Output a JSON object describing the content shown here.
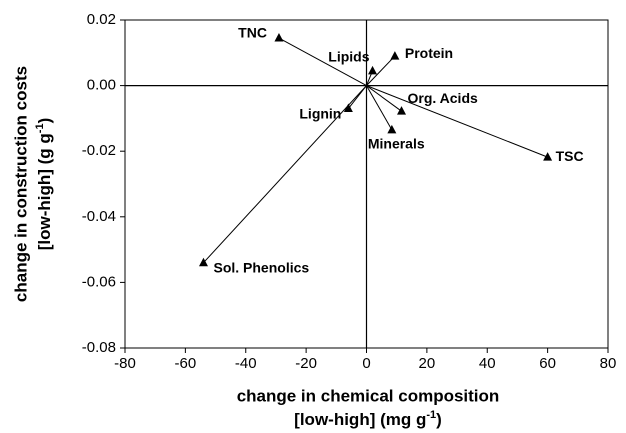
{
  "chart_data": {
    "type": "scatter",
    "x_label": [
      "change in chemical composition",
      "[low-high] (mg g",
      "-1",
      ")"
    ],
    "y_label": [
      "change in construction costs",
      "[low-high] (g g",
      "-1",
      ")"
    ],
    "categories": [
      "TNC",
      "Lipids",
      "Protein",
      "Org. Acids",
      "Minerals",
      "TSC",
      "Lignin",
      "Sol. Phenolics"
    ],
    "x": [
      -29,
      2,
      9.4,
      11.6,
      8.4,
      60,
      -6,
      -54
    ],
    "values": [
      0.0145,
      0.0045,
      0.009,
      -0.0078,
      -0.0135,
      -0.0218,
      -0.007,
      -0.054
    ],
    "color": "#000000",
    "xlim": [
      -80,
      80
    ],
    "xticks": [
      -80,
      -60,
      -40,
      -20,
      0,
      20,
      40,
      60,
      80
    ],
    "ylim": [
      -0.08,
      0.02
    ],
    "yticks": [
      -0.08,
      -0.06,
      -0.04,
      -0.02,
      {
        "value": 0,
        "label": "0.00"
      },
      0.02
    ]
  }
}
